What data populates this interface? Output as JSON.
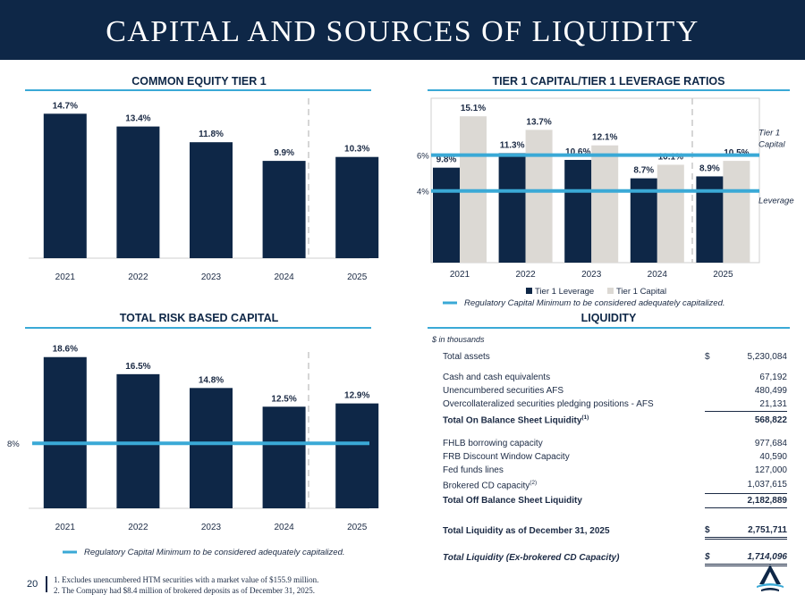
{
  "header": {
    "title": "CAPITAL AND SOURCES OF LIQUIDITY"
  },
  "sections": {
    "cet1_title": "COMMON EQUITY TIER 1",
    "t1_title": "TIER 1 CAPITAL/TIER 1 LEVERAGE RATIOS",
    "trbc_title": "TOTAL RISK BASED CAPITAL",
    "liq_title": "LIQUIDITY"
  },
  "colors": {
    "navy": "#0e2747",
    "gray": "#dcd9d4",
    "accent": "#3aa9d6"
  },
  "chart_data": [
    {
      "id": "cet1",
      "type": "bar",
      "title": "COMMON EQUITY TIER 1",
      "categories": [
        "2021",
        "2022",
        "2023",
        "2024",
        "2025"
      ],
      "series": [
        {
          "values": [
            14.7,
            13.4,
            11.8,
            9.9,
            10.3
          ]
        }
      ],
      "data_labels": [
        "14.7%",
        "13.4%",
        "11.8%",
        "9.9%",
        "10.3%"
      ],
      "ylim": [
        0,
        16
      ],
      "grid": false
    },
    {
      "id": "t1",
      "type": "bar",
      "title": "TIER 1 CAPITAL/TIER 1 LEVERAGE RATIOS",
      "categories": [
        "2021",
        "2022",
        "2023",
        "2024",
        "2025"
      ],
      "series": [
        {
          "name": "Tier 1 Leverage",
          "values": [
            9.8,
            11.3,
            10.6,
            8.7,
            8.9
          ],
          "labels": [
            "9.8%",
            "11.3%",
            "10.6%",
            "8.7%",
            "8.9%"
          ]
        },
        {
          "name": "Tier 1 Capital",
          "values": [
            15.1,
            13.7,
            12.1,
            10.1,
            10.5
          ],
          "labels": [
            "15.1%",
            "13.7%",
            "12.1%",
            "10.1%",
            "10.5%"
          ]
        }
      ],
      "reference_lines": [
        {
          "value": 6,
          "label": "6%",
          "side_label": [
            "Tier 1",
            "Capital"
          ]
        },
        {
          "value": 4,
          "label": "4%",
          "side_label": [
            "Leverage"
          ]
        }
      ],
      "legend": "bottom",
      "legend_note": "Regulatory Capital Minimum to be considered adequately capitalized.",
      "ylim": [
        0,
        16.5
      ],
      "grid": false
    },
    {
      "id": "trbc",
      "type": "bar",
      "title": "TOTAL RISK BASED CAPITAL",
      "categories": [
        "2021",
        "2022",
        "2023",
        "2024",
        "2025"
      ],
      "series": [
        {
          "values": [
            18.6,
            16.5,
            14.8,
            12.5,
            12.9
          ]
        }
      ],
      "data_labels": [
        "18.6%",
        "16.5%",
        "14.8%",
        "12.5%",
        "12.9%"
      ],
      "reference_lines": [
        {
          "value": 8,
          "label": "8%"
        }
      ],
      "legend_note": "Regulatory Capital Minimum to be considered adequately capitalized.",
      "ylim": [
        0,
        20
      ],
      "grid": false
    },
    {
      "id": "liquidity",
      "type": "table",
      "title": "LIQUIDITY",
      "units": "$ in thousands",
      "rows": [
        {
          "label": "Total assets",
          "value": "5,230,084",
          "currency": "$"
        },
        {
          "label": "Cash and cash equivalents",
          "value": "67,192"
        },
        {
          "label": "Unencumbered securities AFS",
          "value": "480,499"
        },
        {
          "label": "Overcollateralized securities pledging positions - AFS",
          "value": "21,131"
        },
        {
          "label": "Total On Balance Sheet Liquidity",
          "sup": "(1)",
          "value": "568,822"
        },
        {
          "label": "FHLB borrowing capacity",
          "value": "977,684"
        },
        {
          "label": "FRB Discount Window Capacity",
          "value": "40,590"
        },
        {
          "label": "Fed funds lines",
          "value": "127,000"
        },
        {
          "label": "Brokered CD capacity",
          "sup": "(2)",
          "value": "1,037,615"
        },
        {
          "label": "Total Off Balance Sheet Liquidity",
          "value": "2,182,889"
        },
        {
          "label": "Total Liquidity as of December 31, 2025",
          "value": "2,751,711",
          "currency": "$"
        },
        {
          "label": "Total Liquidity (Ex-brokered CD Capacity)",
          "value": "1,714,096",
          "currency": "$"
        }
      ]
    }
  ],
  "footer": {
    "page": "20",
    "notes": [
      "1. Excludes unencumbered HTM securities with a market value of $155.9 million.",
      "2. The Company had $8.4 million of brokered deposits as of December 31, 2025."
    ]
  }
}
